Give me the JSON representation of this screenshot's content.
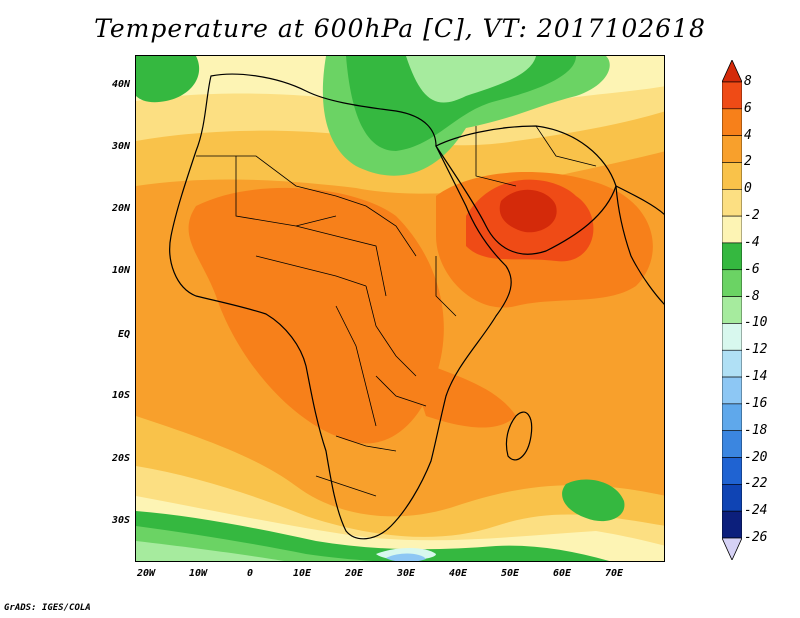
{
  "title": "Temperature at 600hPa [C], VT: 2017102618",
  "footer": "GrADS: IGES/COLA",
  "map": {
    "lon_range": [
      -23,
      80
    ],
    "lat_range": [
      -37,
      45
    ],
    "lat_labels": [
      "40N",
      "30N",
      "20N",
      "10N",
      "EQ",
      "10S",
      "20S",
      "30S"
    ],
    "lon_labels": [
      "20W",
      "10W",
      "0",
      "10E",
      "20E",
      "30E",
      "40E",
      "50E",
      "60E",
      "70E"
    ]
  },
  "colorbar": {
    "labels": [
      "8",
      "6",
      "4",
      "2",
      "0",
      "-2",
      "-4",
      "-6",
      "-8",
      "-10",
      "-12",
      "-14",
      "-16",
      "-18",
      "-20",
      "-22",
      "-24",
      "-26"
    ],
    "colors": [
      "#d42a0a",
      "#ef4b16",
      "#f7801a",
      "#f8a02c",
      "#f9c24a",
      "#fcdf82",
      "#fdf4b4",
      "#35b840",
      "#6bd364",
      "#a6eb9e",
      "#d8f8ee",
      "#b0e0f5",
      "#8dc7f4",
      "#5fa8eb",
      "#3b86e0",
      "#1f63d2",
      "#0f44b4",
      "#0c1f7c",
      "#d6d2f6"
    ]
  },
  "chart_data": {
    "type": "heatmap",
    "title": "Temperature at 600hPa [C], VT: 2017102618",
    "units": "C",
    "xlabel": "",
    "ylabel": "",
    "x_ticks": [
      "20W",
      "10W",
      "0",
      "10E",
      "20E",
      "30E",
      "40E",
      "50E",
      "60E",
      "70E"
    ],
    "y_ticks": [
      "40N",
      "30N",
      "20N",
      "10N",
      "EQ",
      "10S",
      "20S",
      "30S"
    ],
    "xlim": [
      -23,
      80
    ],
    "ylim": [
      -37,
      45
    ],
    "levels": [
      -26,
      -24,
      -22,
      -20,
      -18,
      -16,
      -14,
      -12,
      -10,
      -8,
      -6,
      -4,
      -2,
      0,
      2,
      4,
      6,
      8
    ],
    "grid": false,
    "legend": "right"
  }
}
